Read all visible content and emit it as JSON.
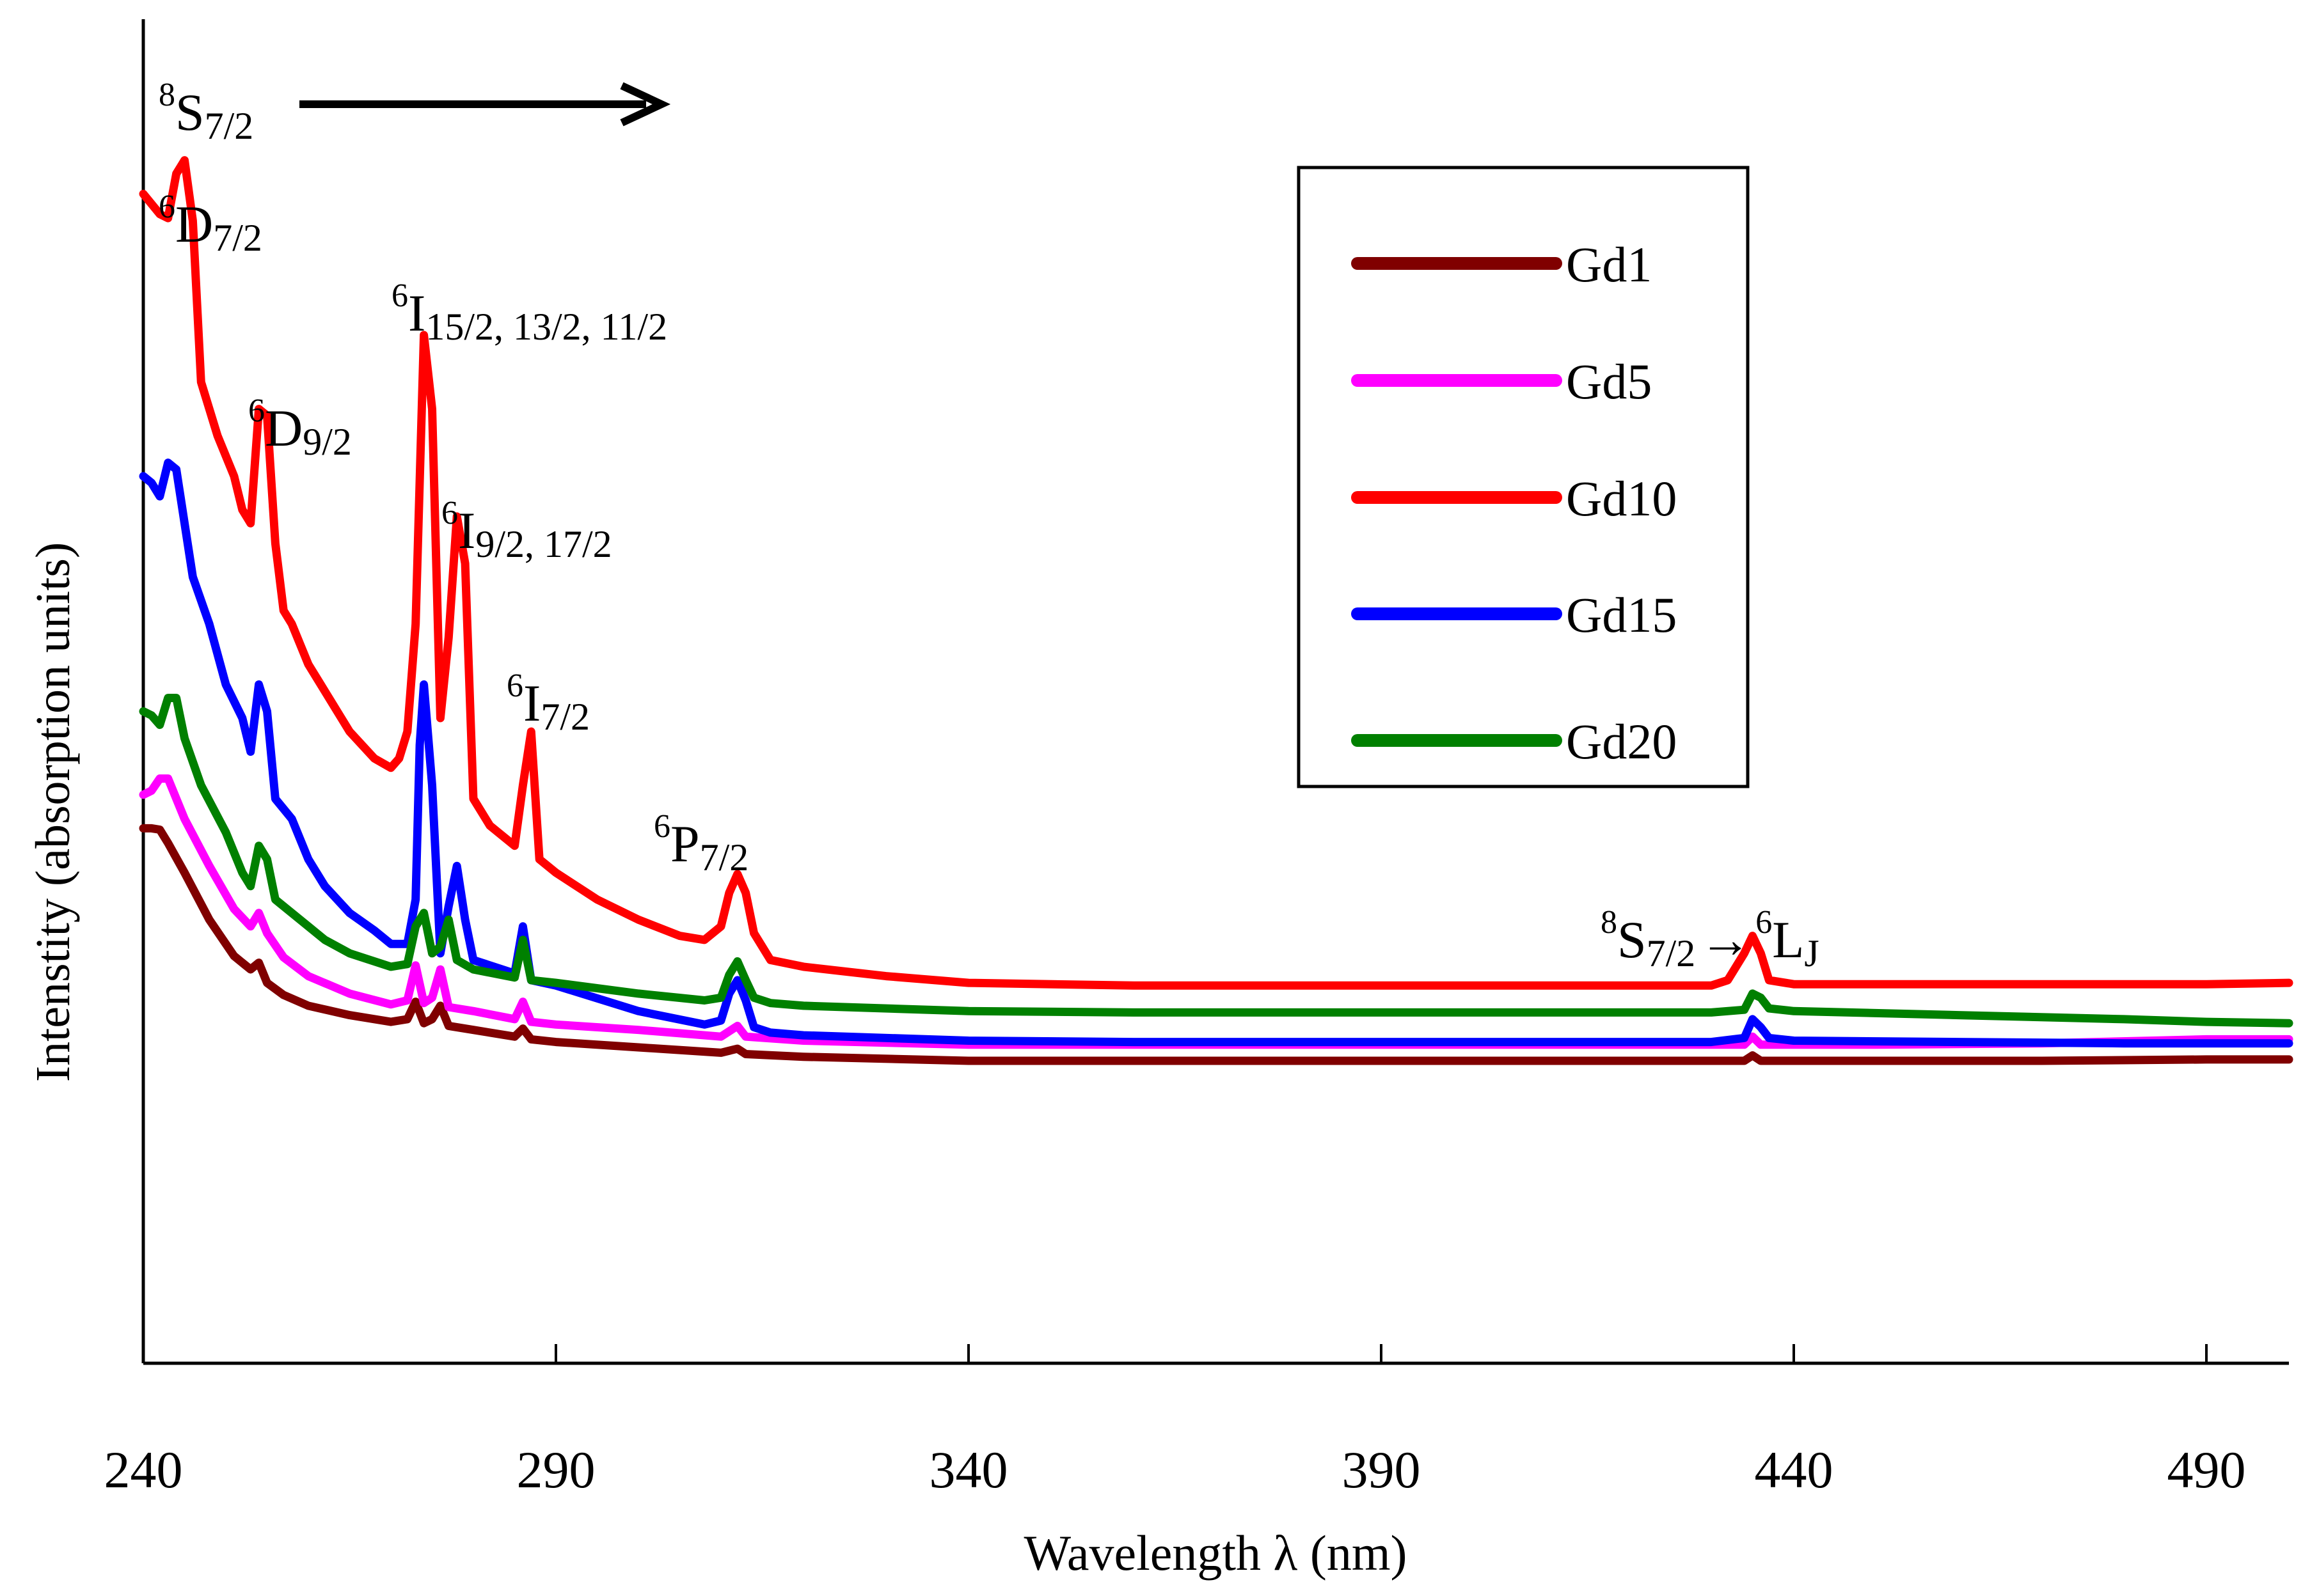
{
  "chart_data": {
    "type": "line",
    "xlabel": "Wavelength λ (nm)",
    "ylabel": "Intenstity (absorption  units)",
    "xlim": [
      240,
      500
    ],
    "ylim": [
      0,
      100
    ],
    "x_ticks": [
      240,
      290,
      340,
      390,
      440,
      490
    ],
    "x_tick_labels": [
      "240",
      "290",
      "340",
      "390",
      "440",
      "490"
    ],
    "y_ticks_shown": false,
    "grid": false,
    "legend_position": "upper-right",
    "annotations": {
      "s72_label": {
        "base": "8",
        "main": "S",
        "sub": "7/2"
      },
      "d72": {
        "sup": "6",
        "main": "D",
        "sub": "7/2"
      },
      "d92": {
        "sup": "6",
        "main": "D",
        "sub": "9/2"
      },
      "i15": {
        "sup": "6",
        "main": "I",
        "sub": "15/2, 13/2, 11/2"
      },
      "i92": {
        "sup": "6",
        "main": "I",
        "sub": "9/2, 17/2"
      },
      "i72": {
        "sup": "6",
        "main": "I",
        "sub": "7/2"
      },
      "p72": {
        "sup": "6",
        "main": "P",
        "sub": "7/2"
      },
      "trans": {
        "sup1": "8",
        "main1": "S",
        "sub1": "7/2",
        "arrow": "→",
        "sup2": "6",
        "main2": "L",
        "sub2": "J"
      }
    },
    "series": [
      {
        "name": "Gd1",
        "color": "#800000",
        "points": [
          [
            240,
            39.8
          ],
          [
            241,
            39.8
          ],
          [
            242,
            39.7
          ],
          [
            243,
            38.7
          ],
          [
            245,
            36.5
          ],
          [
            248,
            33
          ],
          [
            251,
            30.3
          ],
          [
            253,
            29.3
          ],
          [
            254,
            29.8
          ],
          [
            255,
            28.3
          ],
          [
            257,
            27.4
          ],
          [
            260,
            26.6
          ],
          [
            265,
            25.9
          ],
          [
            270,
            25.4
          ],
          [
            272,
            25.6
          ],
          [
            273,
            26.9
          ],
          [
            274,
            25.3
          ],
          [
            275,
            25.6
          ],
          [
            276,
            26.6
          ],
          [
            277,
            25.1
          ],
          [
            280,
            24.8
          ],
          [
            285,
            24.3
          ],
          [
            286,
            24.9
          ],
          [
            287,
            24.1
          ],
          [
            290,
            23.9
          ],
          [
            300,
            23.5
          ],
          [
            310,
            23.1
          ],
          [
            312,
            23.4
          ],
          [
            313,
            23.0
          ],
          [
            320,
            22.8
          ],
          [
            340,
            22.5
          ],
          [
            360,
            22.5
          ],
          [
            400,
            22.5
          ],
          [
            430,
            22.5
          ],
          [
            434,
            22.5
          ],
          [
            435,
            22.9
          ],
          [
            436,
            22.5
          ],
          [
            450,
            22.5
          ],
          [
            470,
            22.5
          ],
          [
            490,
            22.6
          ],
          [
            500,
            22.6
          ]
        ]
      },
      {
        "name": "Gd5",
        "color": "#ff00ff",
        "points": [
          [
            240,
            42.3
          ],
          [
            241,
            42.6
          ],
          [
            242,
            43.5
          ],
          [
            243,
            43.5
          ],
          [
            245,
            40.5
          ],
          [
            248,
            37
          ],
          [
            251,
            33.8
          ],
          [
            253,
            32.5
          ],
          [
            254,
            33.5
          ],
          [
            255,
            32
          ],
          [
            257,
            30.2
          ],
          [
            260,
            28.8
          ],
          [
            265,
            27.5
          ],
          [
            270,
            26.7
          ],
          [
            272,
            27.0
          ],
          [
            273,
            29.6
          ],
          [
            274,
            26.8
          ],
          [
            275,
            27.2
          ],
          [
            276,
            29.3
          ],
          [
            277,
            26.5
          ],
          [
            280,
            26.2
          ],
          [
            285,
            25.6
          ],
          [
            286,
            26.9
          ],
          [
            287,
            25.4
          ],
          [
            290,
            25.2
          ],
          [
            300,
            24.8
          ],
          [
            310,
            24.3
          ],
          [
            312,
            25.1
          ],
          [
            313,
            24.3
          ],
          [
            320,
            24
          ],
          [
            340,
            23.7
          ],
          [
            360,
            23.7
          ],
          [
            400,
            23.7
          ],
          [
            430,
            23.7
          ],
          [
            434,
            23.7
          ],
          [
            435,
            24.3
          ],
          [
            436,
            23.7
          ],
          [
            450,
            23.7
          ],
          [
            470,
            23.8
          ],
          [
            490,
            24.1
          ],
          [
            500,
            24.1
          ]
        ]
      },
      {
        "name": "Gd10",
        "color": "#ff0000",
        "points": [
          [
            240,
            87
          ],
          [
            242,
            85.5
          ],
          [
            243,
            85.2
          ],
          [
            244,
            88.5
          ],
          [
            245,
            89.5
          ],
          [
            246,
            85
          ],
          [
            247,
            73
          ],
          [
            249,
            69
          ],
          [
            251,
            66
          ],
          [
            252,
            63.5
          ],
          [
            253,
            62.5
          ],
          [
            254,
            71
          ],
          [
            255,
            70.5
          ],
          [
            256,
            61
          ],
          [
            257,
            56
          ],
          [
            258,
            55
          ],
          [
            260,
            52
          ],
          [
            262,
            50
          ],
          [
            265,
            47
          ],
          [
            268,
            45
          ],
          [
            270,
            44.3
          ],
          [
            271,
            45
          ],
          [
            272,
            47
          ],
          [
            273,
            55
          ],
          [
            274,
            76.5
          ],
          [
            275,
            71
          ],
          [
            276,
            48
          ],
          [
            277,
            54
          ],
          [
            278,
            63
          ],
          [
            279,
            59.5
          ],
          [
            280,
            42
          ],
          [
            282,
            40
          ],
          [
            285,
            38.5
          ],
          [
            286,
            43
          ],
          [
            287,
            47
          ],
          [
            288,
            37.5
          ],
          [
            290,
            36.5
          ],
          [
            295,
            34.5
          ],
          [
            300,
            33
          ],
          [
            305,
            31.8
          ],
          [
            308,
            31.5
          ],
          [
            310,
            32.5
          ],
          [
            311,
            35
          ],
          [
            312,
            36.4
          ],
          [
            313,
            35
          ],
          [
            314,
            32
          ],
          [
            316,
            30
          ],
          [
            320,
            29.5
          ],
          [
            330,
            28.8
          ],
          [
            340,
            28.3
          ],
          [
            360,
            28.1
          ],
          [
            400,
            28.1
          ],
          [
            430,
            28.1
          ],
          [
            432,
            28.5
          ],
          [
            434,
            30.5
          ],
          [
            435,
            31.8
          ],
          [
            436,
            30.5
          ],
          [
            437,
            28.5
          ],
          [
            440,
            28.2
          ],
          [
            460,
            28.2
          ],
          [
            480,
            28.2
          ],
          [
            490,
            28.2
          ],
          [
            500,
            28.3
          ]
        ]
      },
      {
        "name": "Gd15",
        "color": "#0000ff",
        "points": [
          [
            240,
            66
          ],
          [
            241,
            65.5
          ],
          [
            242,
            64.5
          ],
          [
            243,
            67
          ],
          [
            244,
            66.5
          ],
          [
            245,
            62.5
          ],
          [
            246,
            58.5
          ],
          [
            248,
            55
          ],
          [
            250,
            50.5
          ],
          [
            252,
            48
          ],
          [
            253,
            45.5
          ],
          [
            254,
            50.5
          ],
          [
            255,
            48.5
          ],
          [
            256,
            42
          ],
          [
            258,
            40.5
          ],
          [
            260,
            37.5
          ],
          [
            262,
            35.5
          ],
          [
            265,
            33.5
          ],
          [
            268,
            32.2
          ],
          [
            270,
            31.2
          ],
          [
            272,
            31.2
          ],
          [
            273,
            34.5
          ],
          [
            273.5,
            46
          ],
          [
            274,
            50.5
          ],
          [
            275,
            43
          ],
          [
            276,
            30.5
          ],
          [
            277,
            34
          ],
          [
            278,
            37
          ],
          [
            279,
            33
          ],
          [
            280,
            30
          ],
          [
            285,
            29
          ],
          [
            286,
            32.5
          ],
          [
            287,
            28.5
          ],
          [
            290,
            28.1
          ],
          [
            300,
            26.2
          ],
          [
            308,
            25.2
          ],
          [
            310,
            25.5
          ],
          [
            311,
            27.5
          ],
          [
            312,
            28.5
          ],
          [
            313,
            27
          ],
          [
            314,
            25
          ],
          [
            316,
            24.6
          ],
          [
            320,
            24.4
          ],
          [
            340,
            24
          ],
          [
            360,
            23.9
          ],
          [
            400,
            23.9
          ],
          [
            430,
            23.9
          ],
          [
            434,
            24.2
          ],
          [
            435,
            25.6
          ],
          [
            436,
            25
          ],
          [
            437,
            24.2
          ],
          [
            440,
            24
          ],
          [
            460,
            23.9
          ],
          [
            480,
            23.8
          ],
          [
            490,
            23.8
          ],
          [
            500,
            23.8
          ]
        ]
      },
      {
        "name": "Gd20",
        "color": "#008000",
        "points": [
          [
            240,
            48.5
          ],
          [
            241,
            48.2
          ],
          [
            242,
            47.5
          ],
          [
            243,
            49.5
          ],
          [
            244,
            49.5
          ],
          [
            245,
            46.5
          ],
          [
            247,
            43
          ],
          [
            250,
            39.5
          ],
          [
            252,
            36.5
          ],
          [
            253,
            35.5
          ],
          [
            254,
            38.5
          ],
          [
            255,
            37.5
          ],
          [
            256,
            34.5
          ],
          [
            258,
            33.5
          ],
          [
            260,
            32.5
          ],
          [
            262,
            31.5
          ],
          [
            265,
            30.5
          ],
          [
            270,
            29.5
          ],
          [
            272,
            29.7
          ],
          [
            273,
            32.5
          ],
          [
            274,
            33.5
          ],
          [
            275,
            30.5
          ],
          [
            276,
            31
          ],
          [
            277,
            33
          ],
          [
            278,
            30
          ],
          [
            280,
            29.3
          ],
          [
            285,
            28.7
          ],
          [
            286,
            31.5
          ],
          [
            287,
            28.5
          ],
          [
            290,
            28.3
          ],
          [
            300,
            27.5
          ],
          [
            308,
            27
          ],
          [
            310,
            27.2
          ],
          [
            311,
            28.9
          ],
          [
            312,
            29.9
          ],
          [
            313,
            28.5
          ],
          [
            314,
            27.2
          ],
          [
            316,
            26.8
          ],
          [
            320,
            26.6
          ],
          [
            340,
            26.2
          ],
          [
            360,
            26.1
          ],
          [
            400,
            26.1
          ],
          [
            430,
            26.1
          ],
          [
            434,
            26.3
          ],
          [
            435,
            27.5
          ],
          [
            436,
            27.2
          ],
          [
            437,
            26.4
          ],
          [
            440,
            26.2
          ],
          [
            460,
            25.9
          ],
          [
            480,
            25.6
          ],
          [
            490,
            25.4
          ],
          [
            500,
            25.3
          ]
        ]
      }
    ]
  }
}
